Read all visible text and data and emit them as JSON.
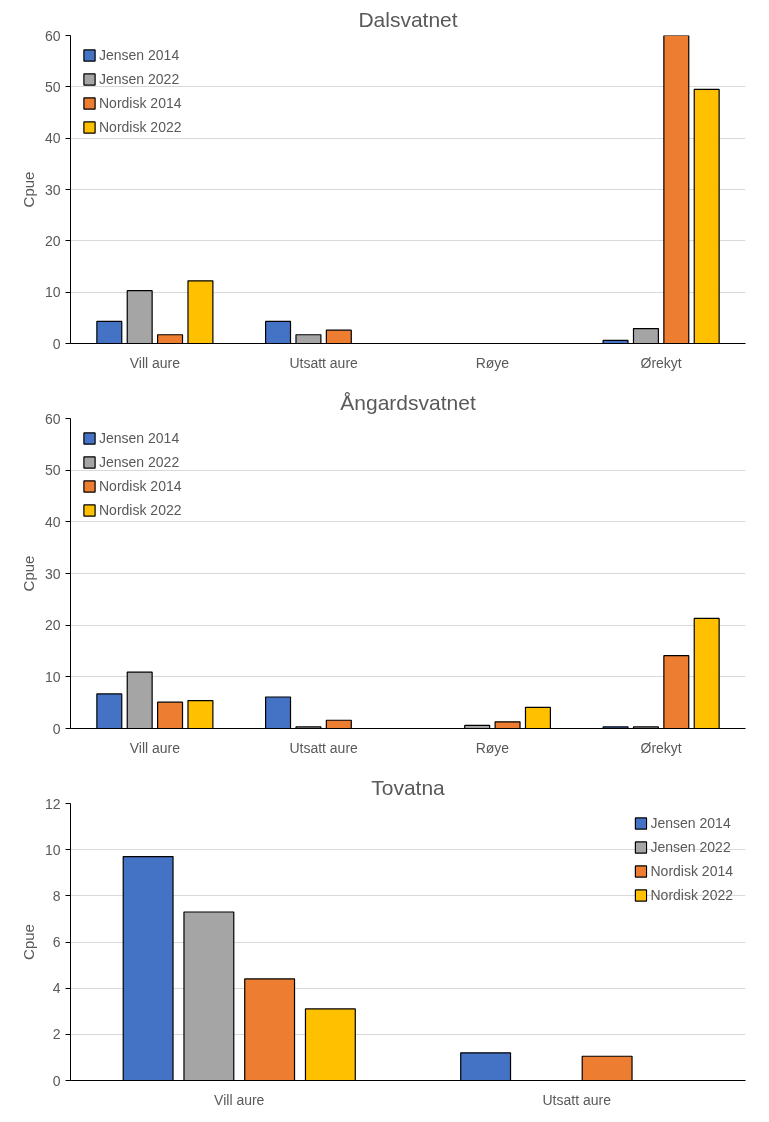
{
  "chart_data": [
    {
      "type": "bar",
      "title": "Dalsvatnet",
      "ylabel": "Cpue",
      "categories": [
        "Vill aure",
        "Utsatt aure",
        "Røye",
        "Ørekyt"
      ],
      "ylim": [
        0,
        60
      ],
      "yticks": [
        0,
        10,
        20,
        30,
        40,
        50,
        60
      ],
      "grid": "y",
      "legend": "top left",
      "series": [
        {
          "name": "Jensen 2014",
          "color": "#4472c4",
          "values": [
            4.3,
            4.3,
            null,
            0.6
          ]
        },
        {
          "name": "Jensen 2022",
          "color": "#a5a5a5",
          "values": [
            10.3,
            1.7,
            null,
            2.9
          ]
        },
        {
          "name": "Nordisk 2014",
          "color": "#ed7d31",
          "values": [
            1.7,
            2.6,
            null,
            60
          ]
        },
        {
          "name": "Nordisk 2022",
          "color": "#ffc000",
          "values": [
            12.2,
            null,
            null,
            49.5
          ]
        }
      ]
    },
    {
      "type": "bar",
      "title": "Ångardsvatnet",
      "ylabel": "Cpue",
      "categories": [
        "Vill aure",
        "Utsatt aure",
        "Røye",
        "Ørekyt"
      ],
      "ylim": [
        0,
        60
      ],
      "yticks": [
        0,
        10,
        20,
        30,
        40,
        50,
        60
      ],
      "grid": "y",
      "legend": "top left",
      "series": [
        {
          "name": "Jensen 2014",
          "color": "#4472c4",
          "values": [
            6.7,
            6.1,
            null,
            0.3
          ]
        },
        {
          "name": "Jensen 2022",
          "color": "#a5a5a5",
          "values": [
            10.9,
            0.3,
            0.6,
            0.3
          ]
        },
        {
          "name": "Nordisk 2014",
          "color": "#ed7d31",
          "values": [
            5.1,
            1.6,
            1.3,
            14.1
          ]
        },
        {
          "name": "Nordisk 2022",
          "color": "#ffc000",
          "values": [
            5.4,
            null,
            4.1,
            21.3
          ]
        }
      ]
    },
    {
      "type": "bar",
      "title": "Tovatna",
      "ylabel": "Cpue",
      "categories": [
        "Vill aure",
        "Utsatt aure"
      ],
      "ylim": [
        0,
        12
      ],
      "yticks": [
        0,
        2,
        4,
        6,
        8,
        10,
        12
      ],
      "grid": "y",
      "legend": "top right",
      "series": [
        {
          "name": "Jensen 2014",
          "color": "#4472c4",
          "values": [
            9.7,
            1.2
          ]
        },
        {
          "name": "Jensen 2022",
          "color": "#a5a5a5",
          "values": [
            7.3,
            null
          ]
        },
        {
          "name": "Nordisk 2014",
          "color": "#ed7d31",
          "values": [
            4.4,
            1.05
          ]
        },
        {
          "name": "Nordisk 2022",
          "color": "#ffc000",
          "values": [
            3.1,
            null
          ]
        }
      ]
    }
  ]
}
